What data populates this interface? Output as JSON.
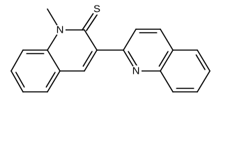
{
  "atoms": [
    {
      "label": "N"
    },
    {
      "label": "S"
    },
    {
      "label": "N"
    }
  ]
}
